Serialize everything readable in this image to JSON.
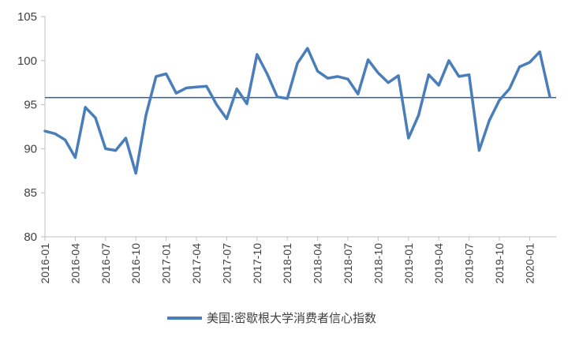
{
  "colors": {
    "series": "#4a7ebb",
    "axis": "#bfbfbf",
    "text": "#404040"
  },
  "chart_data": {
    "type": "line",
    "title": "",
    "xlabel": "",
    "ylabel": "",
    "ylim": [
      80,
      105
    ],
    "yticks": [
      80,
      85,
      90,
      95,
      100,
      105
    ],
    "grid": false,
    "legend_position": "bottom",
    "x": [
      "2016-01",
      "2016-02",
      "2016-03",
      "2016-04",
      "2016-05",
      "2016-06",
      "2016-07",
      "2016-08",
      "2016-09",
      "2016-10",
      "2016-11",
      "2016-12",
      "2017-01",
      "2017-02",
      "2017-03",
      "2017-04",
      "2017-05",
      "2017-06",
      "2017-07",
      "2017-08",
      "2017-09",
      "2017-10",
      "2017-11",
      "2017-12",
      "2018-01",
      "2018-02",
      "2018-03",
      "2018-04",
      "2018-05",
      "2018-06",
      "2018-07",
      "2018-08",
      "2018-09",
      "2018-10",
      "2018-11",
      "2018-12",
      "2019-01",
      "2019-02",
      "2019-03",
      "2019-04",
      "2019-05",
      "2019-06",
      "2019-07",
      "2019-08",
      "2019-09",
      "2019-10",
      "2019-11",
      "2019-12",
      "2020-01",
      "2020-02",
      "2020-03"
    ],
    "xtick_labels": [
      "2016-01",
      "2016-04",
      "2016-07",
      "2016-10",
      "2017-01",
      "2017-04",
      "2017-07",
      "2017-10",
      "2018-01",
      "2018-04",
      "2018-07",
      "2018-10",
      "2019-01",
      "2019-04",
      "2019-07",
      "2019-10",
      "2020-01"
    ],
    "series": [
      {
        "name": "美国:密歇根大学消费者信心指数",
        "values": [
          92.0,
          91.7,
          91.0,
          89.0,
          94.7,
          93.5,
          90.0,
          89.8,
          91.2,
          87.2,
          93.8,
          98.2,
          98.5,
          96.3,
          96.9,
          97.0,
          97.1,
          95.0,
          93.4,
          96.8,
          95.1,
          100.7,
          98.5,
          95.9,
          95.7,
          99.7,
          101.4,
          98.8,
          98.0,
          98.2,
          97.9,
          96.2,
          100.1,
          98.6,
          97.5,
          98.3,
          91.2,
          93.8,
          98.4,
          97.2,
          100.0,
          98.2,
          98.4,
          89.8,
          93.2,
          95.5,
          96.8,
          99.3,
          99.8,
          101.0,
          95.9
        ]
      }
    ],
    "reference_line": {
      "value": 95.8
    }
  }
}
